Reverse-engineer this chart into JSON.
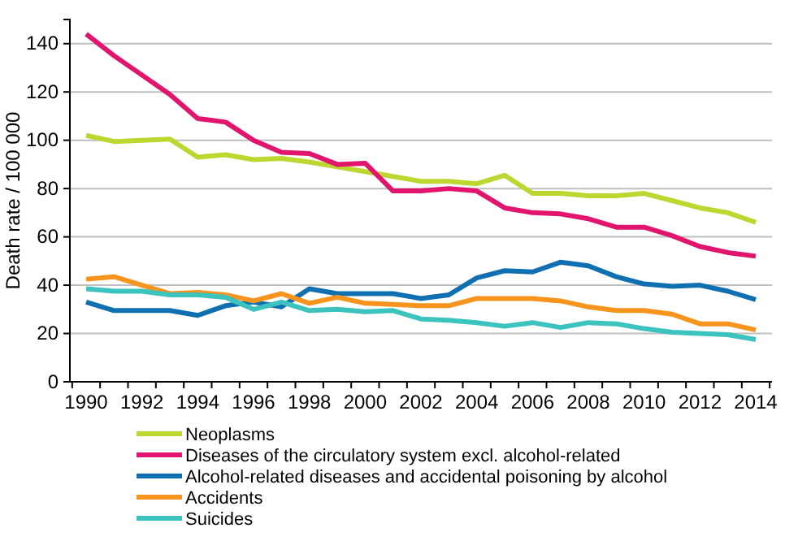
{
  "chart_data": {
    "type": "line",
    "ylabel": "Death rate / 100 000",
    "categories": [
      "1990",
      null,
      "1992",
      null,
      "1994",
      null,
      "1996",
      null,
      "1998",
      null,
      "2000",
      null,
      "2002",
      null,
      "2004",
      null,
      "2006",
      null,
      "2008",
      null,
      "2010",
      null,
      "2012",
      null,
      "2014"
    ],
    "ylim": [
      0,
      150
    ],
    "yticks": [
      0,
      20,
      40,
      60,
      80,
      100,
      120,
      140
    ],
    "grid": "y",
    "legend": "bottom",
    "marker": "none",
    "line_style": "solid",
    "series": [
      {
        "name": "Neoplasms",
        "color": "#bed630",
        "values": [
          102,
          99.5,
          100,
          100.5,
          93,
          94,
          92,
          92.5,
          91,
          89,
          87,
          85,
          83,
          83,
          82,
          85.5,
          78,
          78,
          77,
          77,
          78,
          75,
          72,
          70,
          66
        ]
      },
      {
        "name": "Diseases of the circulatory system excl. alcohol-related",
        "color": "#e2156e",
        "values": [
          144,
          135,
          127,
          119,
          109,
          107.5,
          100,
          95,
          94.5,
          90,
          90.5,
          79,
          79,
          80,
          79,
          72,
          70,
          69.5,
          67.5,
          64,
          64,
          60.5,
          56,
          53.5,
          52
        ]
      },
      {
        "name": "Alcohol-related diseases and accidental poisoning by alcohol",
        "color": "#0f6fb0",
        "values": [
          33,
          29.5,
          29.5,
          29.5,
          27.5,
          31.5,
          33,
          31,
          38.5,
          36.5,
          36.5,
          36.5,
          34.5,
          36,
          43,
          46,
          45.5,
          49.5,
          48,
          43.5,
          40.5,
          39.5,
          40,
          37.5,
          34
        ]
      },
      {
        "name": "Accidents",
        "color": "#f7941d",
        "values": [
          42.5,
          43.5,
          40,
          36.5,
          37,
          36,
          33.5,
          36.5,
          32.5,
          35,
          32.5,
          32,
          31.5,
          31.5,
          34.5,
          34.5,
          34.5,
          33.5,
          31,
          29.5,
          29.5,
          28,
          24,
          24,
          21.5
        ]
      },
      {
        "name": "Suicides",
        "color": "#3cc3be",
        "values": [
          38.5,
          37.5,
          37.5,
          36,
          36,
          35,
          30,
          33,
          29.5,
          30,
          29,
          29.5,
          26,
          25.5,
          24.5,
          23,
          24.5,
          22.5,
          24.5,
          24,
          22,
          20.5,
          20,
          19.5,
          17.5
        ]
      }
    ]
  }
}
